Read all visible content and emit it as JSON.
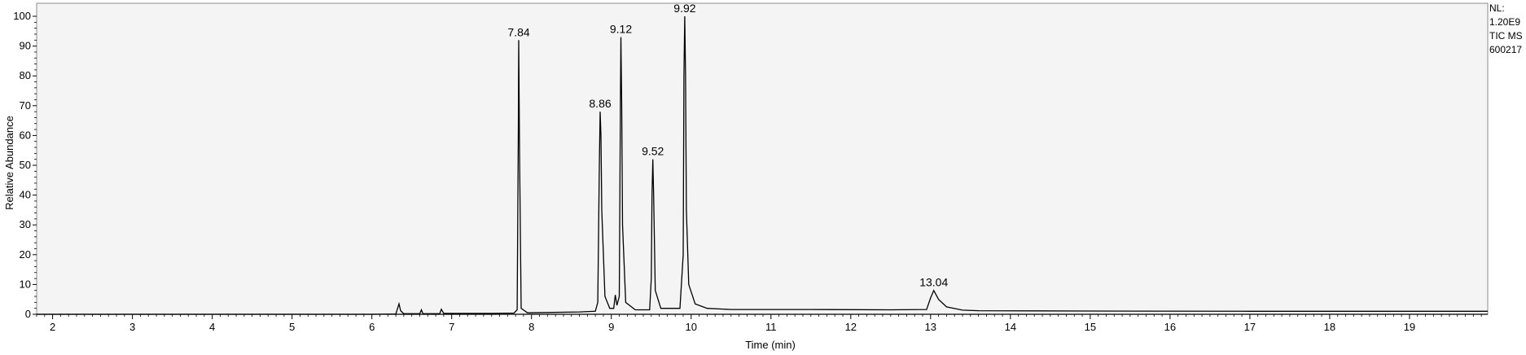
{
  "chart_data": {
    "type": "line",
    "title": "",
    "xlabel": "Time (min)",
    "ylabel": "Relative Abundance",
    "xlim": [
      1.8,
      19.98
    ],
    "ylim": [
      0,
      100
    ],
    "x_ticks": [
      2,
      3,
      4,
      5,
      6,
      7,
      8,
      9,
      10,
      11,
      12,
      13,
      14,
      15,
      16,
      17,
      18,
      19
    ],
    "y_ticks": [
      0,
      10,
      20,
      30,
      40,
      50,
      60,
      70,
      80,
      90,
      100
    ],
    "grid": false,
    "legend": "none",
    "info_text": [
      "NL:",
      "1.20E9",
      "TIC  MS",
      "600217"
    ],
    "peak_labels": [
      {
        "time": 7.84,
        "label": "7.84",
        "height": 92
      },
      {
        "time": 8.86,
        "label": "8.86",
        "height": 68
      },
      {
        "time": 9.12,
        "label": "9.12",
        "height": 93
      },
      {
        "time": 9.52,
        "label": "9.52",
        "height": 52
      },
      {
        "time": 9.92,
        "label": "9.92",
        "height": 100
      },
      {
        "time": 13.04,
        "label": "13.04",
        "height": 8
      }
    ],
    "series": [
      {
        "points": [
          [
            1.8,
            0.0
          ],
          [
            6.0,
            0.0
          ],
          [
            6.3,
            0.1
          ],
          [
            6.34,
            3.5
          ],
          [
            6.36,
            1.2
          ],
          [
            6.4,
            0.2
          ],
          [
            6.6,
            0.2
          ],
          [
            6.62,
            1.5
          ],
          [
            6.64,
            0.2
          ],
          [
            6.85,
            0.2
          ],
          [
            6.87,
            1.7
          ],
          [
            6.9,
            0.3
          ],
          [
            7.5,
            0.3
          ],
          [
            7.78,
            0.4
          ],
          [
            7.82,
            1.5
          ],
          [
            7.835,
            60
          ],
          [
            7.84,
            92
          ],
          [
            7.85,
            55
          ],
          [
            7.87,
            2.0
          ],
          [
            7.95,
            0.5
          ],
          [
            8.6,
            0.8
          ],
          [
            8.8,
            1.0
          ],
          [
            8.83,
            4.0
          ],
          [
            8.85,
            50
          ],
          [
            8.86,
            68
          ],
          [
            8.87,
            60
          ],
          [
            8.88,
            35
          ],
          [
            8.92,
            6.0
          ],
          [
            8.98,
            2.0
          ],
          [
            9.03,
            2.0
          ],
          [
            9.05,
            6.5
          ],
          [
            9.07,
            3.0
          ],
          [
            9.1,
            6.0
          ],
          [
            9.115,
            75
          ],
          [
            9.12,
            93
          ],
          [
            9.13,
            70
          ],
          [
            9.14,
            30
          ],
          [
            9.18,
            4.0
          ],
          [
            9.3,
            1.5
          ],
          [
            9.48,
            1.5
          ],
          [
            9.5,
            12
          ],
          [
            9.51,
            40
          ],
          [
            9.52,
            52
          ],
          [
            9.53,
            40
          ],
          [
            9.55,
            8.0
          ],
          [
            9.62,
            2.0
          ],
          [
            9.86,
            2.0
          ],
          [
            9.9,
            20
          ],
          [
            9.91,
            80
          ],
          [
            9.92,
            100
          ],
          [
            9.93,
            80
          ],
          [
            9.94,
            35
          ],
          [
            9.97,
            10
          ],
          [
            10.05,
            3.5
          ],
          [
            10.2,
            2.0
          ],
          [
            10.5,
            1.6
          ],
          [
            11.5,
            1.6
          ],
          [
            12.5,
            1.5
          ],
          [
            12.95,
            1.6
          ],
          [
            13.0,
            5.5
          ],
          [
            13.04,
            8.0
          ],
          [
            13.1,
            5.0
          ],
          [
            13.2,
            2.5
          ],
          [
            13.4,
            1.4
          ],
          [
            13.6,
            1.2
          ],
          [
            15.0,
            1.1
          ],
          [
            17.0,
            1.0
          ],
          [
            19.98,
            1.0
          ]
        ]
      }
    ]
  }
}
